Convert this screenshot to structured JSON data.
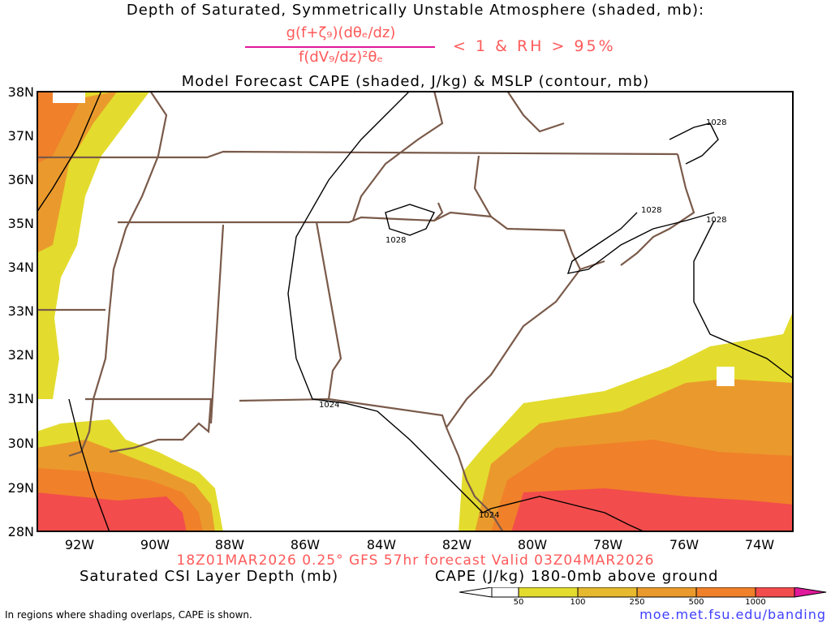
{
  "title_line1": "Depth of Saturated, Symmetrically Unstable Atmosphere (shaded, mb):",
  "formula": {
    "numerator": "g(f+ζ₉)(dθₑ/dz)",
    "denominator": "f(dV₉/dz)²θₑ",
    "condition": "< 1 & RH > 95%"
  },
  "title_line3": "Model Forecast CAPE (shaded, J/kg) & MSLP (contour, mb)",
  "map": {
    "lat_labels": [
      "38N",
      "37N",
      "36N",
      "35N",
      "34N",
      "33N",
      "32N",
      "31N",
      "30N",
      "29N",
      "28N"
    ],
    "lon_labels": [
      "92W",
      "90W",
      "88W",
      "86W",
      "84W",
      "82W",
      "80W",
      "78W",
      "76W",
      "74W"
    ],
    "isobar_labels": [
      "1028",
      "1028",
      "1028",
      "1028",
      "1024",
      "1024"
    ],
    "colors": {
      "cape_50": "#e3dc2e",
      "cape_100": "#e6b92e",
      "cape_250": "#ea9a2c",
      "cape_500": "#f0802a",
      "cape_1000": "#f24c4c",
      "state_lines": "#7a5a4a",
      "isobars": "#000000"
    }
  },
  "valid_line": "18Z01MAR2026 0.25° GFS 57hr forecast Valid 03Z04MAR2026",
  "left_label": "Saturated CSI Layer Depth (mb)",
  "right_label": "CAPE (J/kg) 180-0mb above ground",
  "colorbar": {
    "ticks": [
      "50",
      "100",
      "250",
      "500",
      "1000"
    ],
    "colors": [
      "#ffffff",
      "#e3dc2e",
      "#e6b92e",
      "#ea9a2c",
      "#f0802a",
      "#f24c4c",
      "#e0189a"
    ]
  },
  "footnote": "In regions where shading overlaps, CAPE is shown.",
  "url": "moe.met.fsu.edu/banding"
}
